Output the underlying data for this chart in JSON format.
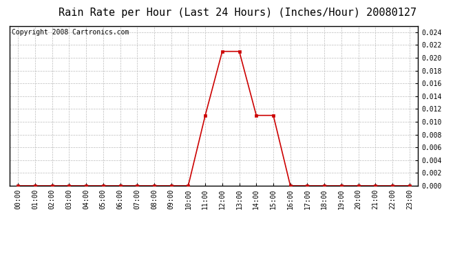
{
  "title": "Rain Rate per Hour (Last 24 Hours) (Inches/Hour) 20080127",
  "copyright": "Copyright 2008 Cartronics.com",
  "hours": [
    0,
    1,
    2,
    3,
    4,
    5,
    6,
    7,
    8,
    9,
    10,
    11,
    12,
    13,
    14,
    15,
    16,
    17,
    18,
    19,
    20,
    21,
    22,
    23
  ],
  "values": [
    0.0,
    0.0,
    0.0,
    0.0,
    0.0,
    0.0,
    0.0,
    0.0,
    0.0,
    0.0,
    0.0,
    0.011,
    0.021,
    0.021,
    0.011,
    0.011,
    0.0,
    0.0,
    0.0,
    0.0,
    0.0,
    0.0,
    0.0,
    0.0
  ],
  "line_color": "#cc0000",
  "marker": "s",
  "marker_size": 3,
  "bg_color": "#ffffff",
  "plot_bg_color": "#ffffff",
  "grid_color": "#bbbbbb",
  "ylim": [
    0.0,
    0.025
  ],
  "yticks": [
    0.0,
    0.002,
    0.004,
    0.006,
    0.008,
    0.01,
    0.012,
    0.014,
    0.016,
    0.018,
    0.02,
    0.022,
    0.024
  ],
  "title_fontsize": 11,
  "copyright_fontsize": 7,
  "tick_fontsize": 7,
  "hour_labels": [
    "00:00",
    "01:00",
    "02:00",
    "03:00",
    "04:00",
    "05:00",
    "06:00",
    "07:00",
    "08:00",
    "09:00",
    "10:00",
    "11:00",
    "12:00",
    "13:00",
    "14:00",
    "15:00",
    "16:00",
    "17:00",
    "18:00",
    "19:00",
    "20:00",
    "21:00",
    "22:00",
    "23:00"
  ]
}
